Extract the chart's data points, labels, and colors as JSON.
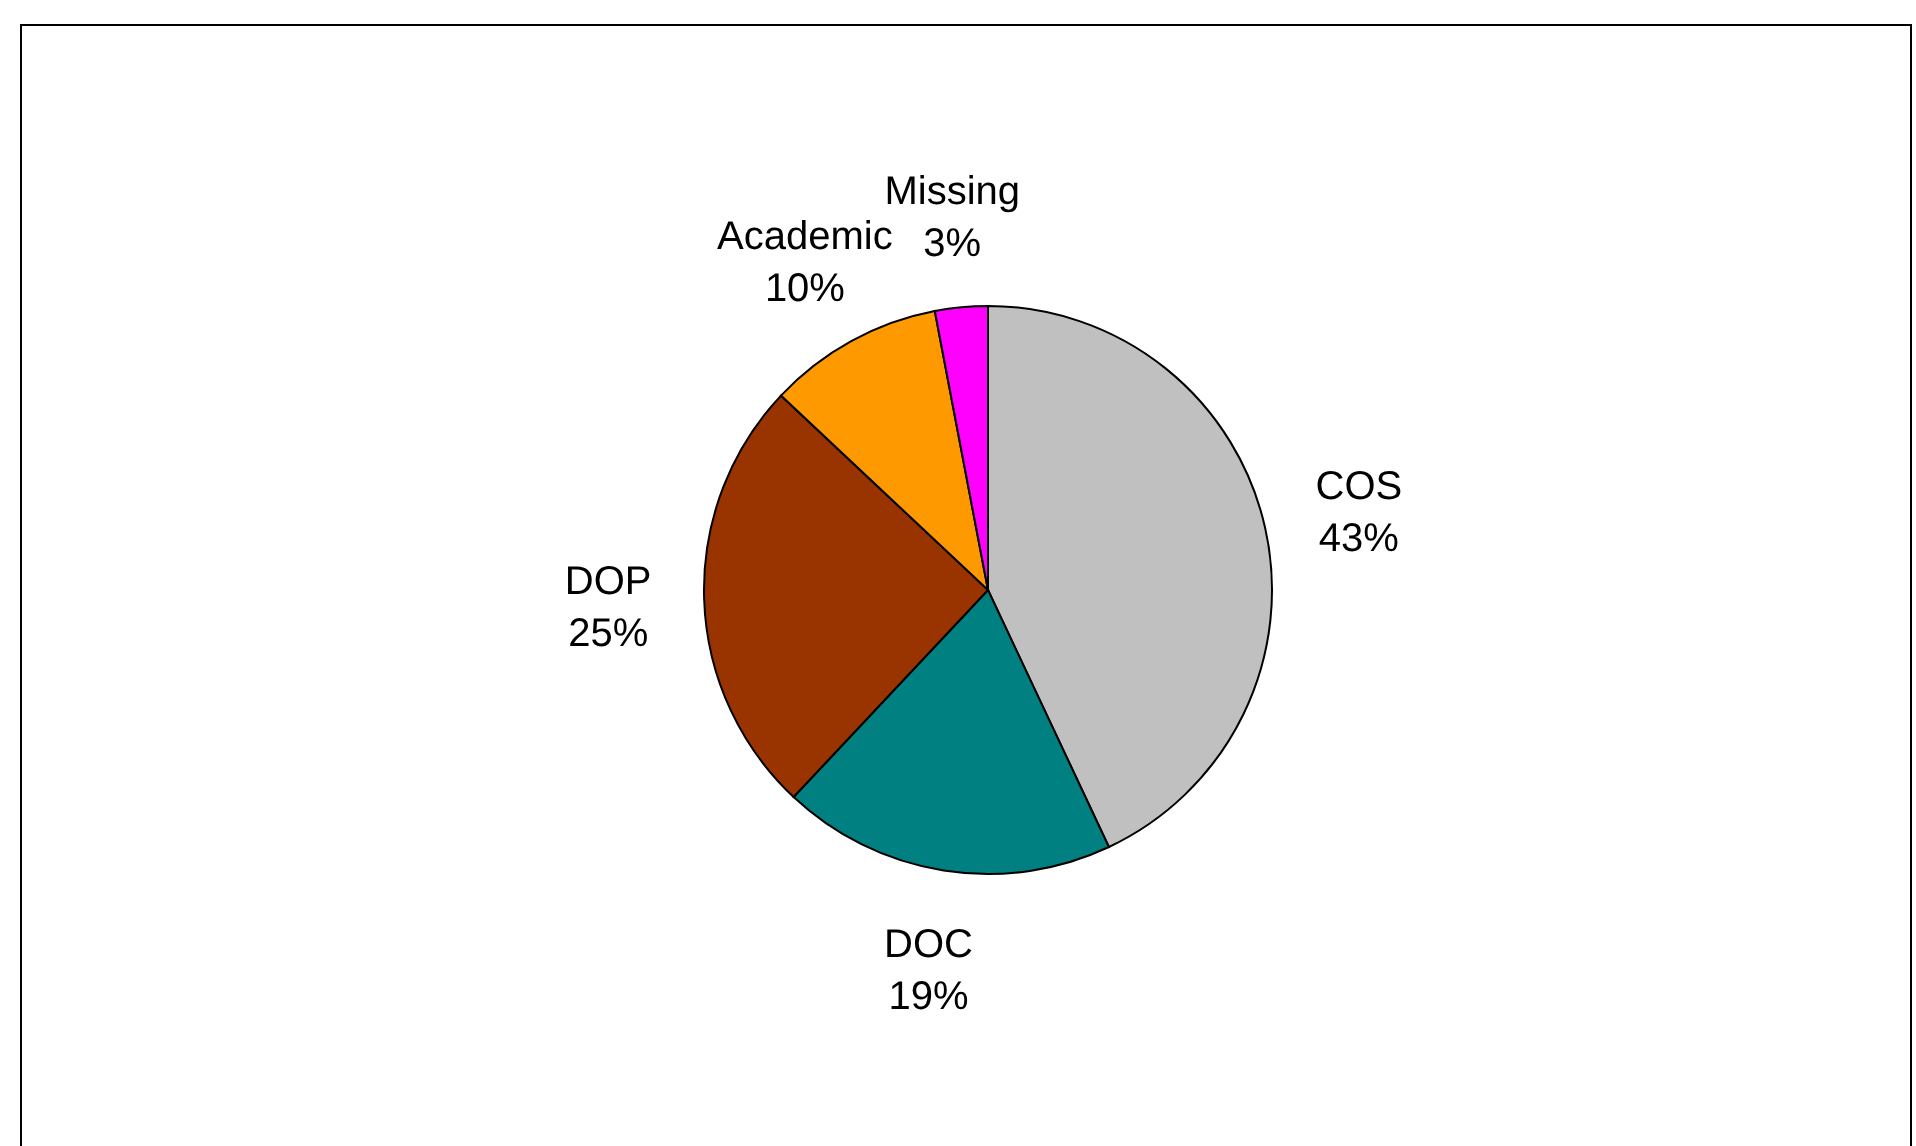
{
  "chart_data": {
    "type": "pie",
    "categories": [
      "COS",
      "DOC",
      "DOP",
      "Academic",
      "Missing"
    ],
    "values": [
      43,
      19,
      25,
      10,
      3
    ],
    "value_labels": [
      "43%",
      "19%",
      "25%",
      "10%",
      "3%"
    ],
    "colors": [
      "#c0c0c0",
      "#008080",
      "#993300",
      "#ff9900",
      "#ff00ff"
    ],
    "legend": false
  }
}
